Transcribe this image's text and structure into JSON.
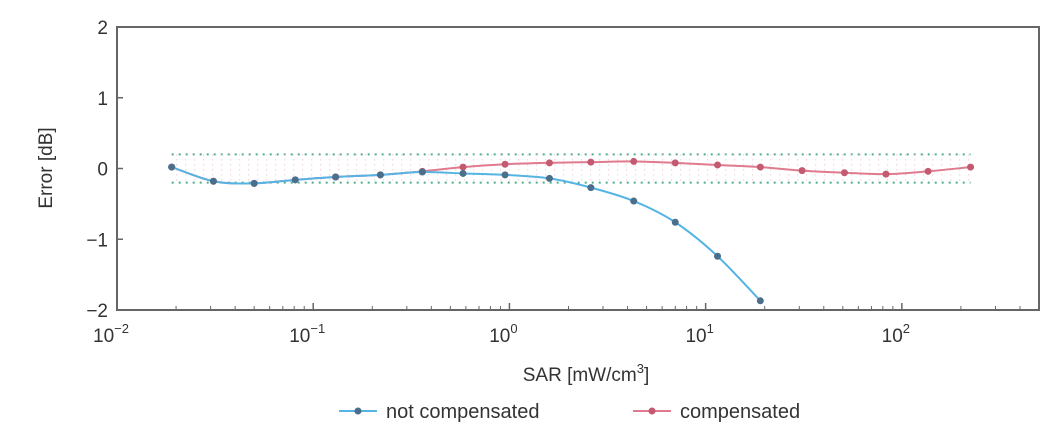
{
  "chart_data": {
    "type": "line",
    "xscale": "log",
    "xlim": [
      0.01,
      500
    ],
    "ylim": [
      -2,
      2
    ],
    "xlabel": {
      "main": "SAR [mW/cm",
      "sup": "3",
      "tail": "]"
    },
    "ylabel": "Error [dB]",
    "xticks": [
      {
        "value": 0.01,
        "base": "10",
        "exp": "−2"
      },
      {
        "value": 0.1,
        "base": "10",
        "exp": "−1"
      },
      {
        "value": 1,
        "base": "10",
        "exp": "0"
      },
      {
        "value": 10,
        "base": "10",
        "exp": "1"
      },
      {
        "value": 100,
        "base": "10",
        "exp": "2"
      }
    ],
    "yticks": [
      {
        "value": 2,
        "label": "2"
      },
      {
        "value": 1,
        "label": "1"
      },
      {
        "value": 0,
        "label": "0"
      },
      {
        "value": -1,
        "label": "−1"
      },
      {
        "value": -2,
        "label": "−2"
      }
    ],
    "reference_band": {
      "upper": 0.2,
      "lower": -0.2
    },
    "legend_position": "bottom",
    "series": [
      {
        "name": "not compensated",
        "color": "#55b4e4",
        "marker": "#4a6e8c",
        "x": [
          0.019,
          0.031,
          0.05,
          0.081,
          0.13,
          0.22,
          0.36,
          0.58,
          0.95,
          1.6,
          2.6,
          4.3,
          7,
          11.5,
          19
        ],
        "y": [
          0.02,
          -0.18,
          -0.21,
          -0.16,
          -0.12,
          -0.09,
          -0.05,
          -0.07,
          -0.09,
          -0.14,
          -0.27,
          -0.46,
          -0.76,
          -1.24,
          -1.87
        ]
      },
      {
        "name": "compensated",
        "color": "#e07a8e",
        "marker": "#c45a70",
        "x": [
          0.019,
          0.031,
          0.05,
          0.081,
          0.13,
          0.22,
          0.36,
          0.58,
          0.95,
          1.6,
          2.6,
          4.3,
          7,
          11.5,
          19,
          31,
          51,
          83,
          136,
          224
        ],
        "y": [
          0.02,
          -0.18,
          -0.21,
          -0.16,
          -0.12,
          -0.09,
          -0.04,
          0.02,
          0.06,
          0.08,
          0.09,
          0.1,
          0.08,
          0.05,
          0.02,
          -0.03,
          -0.06,
          -0.08,
          -0.04,
          0.02
        ]
      }
    ]
  }
}
